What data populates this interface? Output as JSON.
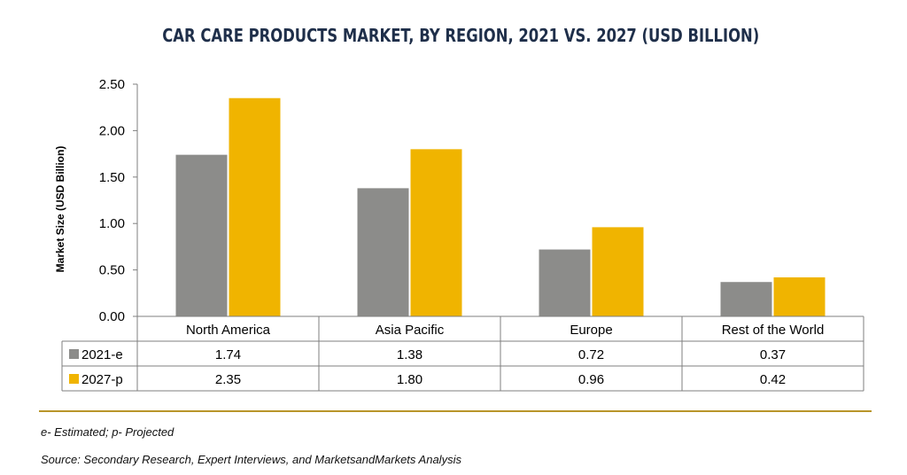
{
  "chart_data": {
    "type": "bar",
    "title": "CAR CARE PRODUCTS MARKET, BY REGION, 2021 VS. 2027 (USD BILLION)",
    "ylabel": "Market Size (USD Billion)",
    "xlabel": "",
    "ylim": [
      0,
      2.5
    ],
    "yticks": [
      "0.00",
      "0.50",
      "1.00",
      "1.50",
      "2.00",
      "2.50"
    ],
    "categories": [
      "North America",
      "Asia Pacific",
      "Europe",
      "Rest of the World"
    ],
    "series": [
      {
        "name": "2021-e",
        "color": "#8c8c8a",
        "values": [
          1.74,
          1.38,
          0.72,
          0.37
        ],
        "labels": [
          "1.74",
          "1.38",
          "0.72",
          "0.37"
        ]
      },
      {
        "name": "2027-p",
        "color": "#f0b400",
        "values": [
          2.35,
          1.8,
          0.96,
          0.42
        ],
        "labels": [
          "2.35",
          "1.80",
          "0.96",
          "0.42"
        ]
      }
    ],
    "grid": false,
    "legend": "data-table"
  },
  "footnote": "e- Estimated; p- Projected",
  "source": "Source: Secondary Research, Expert Interviews, and MarketsandMarkets Analysis"
}
